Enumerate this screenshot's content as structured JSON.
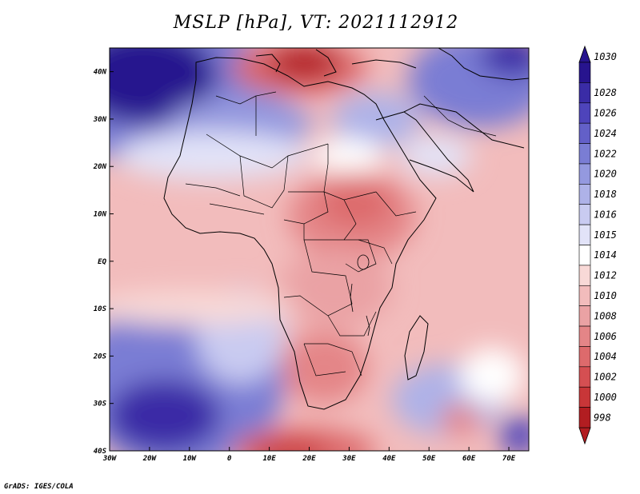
{
  "title": "MSLP [hPa], VT: 2021112912",
  "credit": "GrADS: IGES/COLA",
  "map": {
    "lon_range": [
      -30,
      75
    ],
    "lat_range": [
      -40,
      45
    ],
    "lon_ticks": [
      "30W",
      "20W",
      "10W",
      "0",
      "10E",
      "20E",
      "30E",
      "40E",
      "50E",
      "60E",
      "70E"
    ],
    "lat_ticks": [
      "40N",
      "30N",
      "20N",
      "10N",
      "EQ",
      "10S",
      "20S",
      "30S",
      "40S"
    ]
  },
  "colorbar": {
    "labels": [
      "1030",
      "1028",
      "1026",
      "1024",
      "1022",
      "1020",
      "1018",
      "1016",
      "1015",
      "1014",
      "1012",
      "1010",
      "1008",
      "1006",
      "1004",
      "1002",
      "1000",
      "998"
    ],
    "colors": [
      "#27148e",
      "#3a2ca6",
      "#4e44bb",
      "#6360c8",
      "#7a7dd4",
      "#9499df",
      "#aeb2e8",
      "#c9cbf1",
      "#e2e3f8",
      "#ffffff",
      "#f8d9d7",
      "#f2bcbc",
      "#eaa2a4",
      "#e48587",
      "#dd6a6c",
      "#d54f52",
      "#c83638",
      "#b21d21"
    ]
  }
}
